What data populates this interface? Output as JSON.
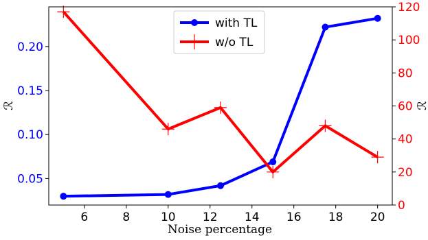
{
  "chart_data": {
    "type": "line",
    "xlabel": "Noise percentage",
    "ylabel_left": "ℛ",
    "ylabel_right": "ℛ",
    "x_ticks": [
      6,
      8,
      10,
      12,
      14,
      16,
      18,
      20
    ],
    "xlim": [
      4.3,
      20.7
    ],
    "y_left_ticks": [
      0.05,
      0.1,
      0.15,
      0.2
    ],
    "y_left_lim": [
      0.02,
      0.245
    ],
    "y_right_ticks": [
      0,
      20,
      40,
      60,
      80,
      100,
      120
    ],
    "y_right_lim": [
      0,
      120
    ],
    "legend_position": "top-center",
    "grid": false,
    "colors": {
      "left_axis": "#0000ff",
      "right_axis": "#ff0000",
      "with_tl": "#0000ff",
      "wo_tl": "#ff0000"
    },
    "series": [
      {
        "name": "with TL",
        "axis": "left",
        "marker": "circle",
        "x": [
          5,
          10,
          12.5,
          15,
          17.5,
          20
        ],
        "y": [
          0.03,
          0.032,
          0.042,
          0.069,
          0.222,
          0.232
        ]
      },
      {
        "name": "w/o TL",
        "axis": "right",
        "marker": "plus",
        "x": [
          5,
          10,
          12.5,
          15,
          17.5,
          20
        ],
        "y": [
          117,
          46,
          59,
          20,
          48,
          29
        ]
      }
    ]
  }
}
